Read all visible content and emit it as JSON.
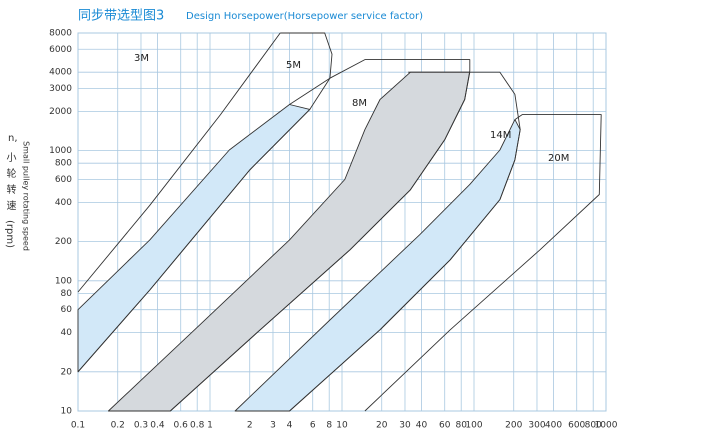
{
  "chart_data": {
    "type": "region",
    "title": "同步带选型图3",
    "subtitle": "Design Horsepower(Horsepower service factor)",
    "ylabel_symbol": "n,",
    "ylabel_cn": "小轮转速",
    "ylabel_unit": "(rpm)",
    "ylabel_en": "Small pulley rotating speed",
    "log_x": true,
    "log_y": true,
    "grid": true,
    "xlim": [
      0.1,
      1000
    ],
    "ylim": [
      10,
      8000
    ],
    "xticks": [
      0.1,
      0.2,
      0.3,
      0.4,
      0.6,
      0.8,
      1,
      2,
      3,
      4,
      6,
      8,
      10,
      20,
      30,
      40,
      60,
      80,
      100,
      200,
      300,
      400,
      600,
      800,
      1000
    ],
    "yticks": [
      10,
      20,
      40,
      60,
      80,
      100,
      200,
      400,
      600,
      800,
      1000,
      2000,
      3000,
      4000,
      6000,
      8000
    ],
    "grid_color": "#a9c8e0",
    "line_color": "#333333",
    "series": [
      {
        "name": "3M",
        "x": [
          0.1,
          0.35,
          1.2,
          3.4
        ],
        "y": [
          82,
          380,
          1890,
          8000
        ]
      },
      {
        "name": "5M",
        "x": [
          3.4,
          7.4,
          8.4,
          8.1,
          5.7,
          2.0,
          0.35,
          0.1
        ],
        "y": [
          8000,
          8000,
          5500,
          3600,
          2070,
          710,
          85,
          20
        ]
      },
      {
        "name": "8M",
        "x": [
          4.0,
          8.1,
          14.9,
          93,
          93,
          85,
          60,
          33,
          11.5,
          2.4,
          0.5
        ],
        "y": [
          2260,
          3600,
          5000,
          5000,
          4100,
          2470,
          1210,
          500,
          173,
          42,
          10
        ]
      },
      {
        "name": "14M",
        "x": [
          31.7,
          157,
          204,
          224,
          204,
          157,
          66,
          19.4,
          4.0
        ],
        "y": [
          4000,
          4000,
          2700,
          1450,
          850,
          420,
          145,
          42,
          10
        ]
      },
      {
        "name": "20M",
        "x": [
          204,
          232,
          920,
          890,
          316,
          66,
          14.9
        ],
        "y": [
          1730,
          1890,
          1890,
          460,
          173,
          42,
          10
        ]
      }
    ],
    "bands": [
      {
        "color": "#d2e8f8",
        "x": [
          0.1,
          0.35,
          1.4,
          4.0,
          5.7,
          2.0,
          0.35,
          0.1
        ],
        "y": [
          60,
          206,
          1010,
          2260,
          2070,
          710,
          85,
          20
        ]
      },
      {
        "color": "#d5d9dd",
        "x": [
          0.17,
          0.84,
          4.0,
          10.5,
          14.9,
          19.4,
          33,
          93,
          85,
          60,
          33,
          11.5,
          2.4,
          0.5
        ],
        "y": [
          10,
          46,
          206,
          600,
          1450,
          2470,
          4000,
          4000,
          2470,
          1210,
          500,
          173,
          42,
          10
        ]
      },
      {
        "color": "#d2e8f8",
        "x": [
          1.55,
          8.1,
          39,
          93,
          157,
          204,
          224,
          204,
          157,
          66,
          19.4,
          4.0
        ],
        "y": [
          10,
          50,
          227,
          550,
          1010,
          1730,
          1450,
          850,
          420,
          145,
          42,
          10
        ]
      }
    ]
  }
}
